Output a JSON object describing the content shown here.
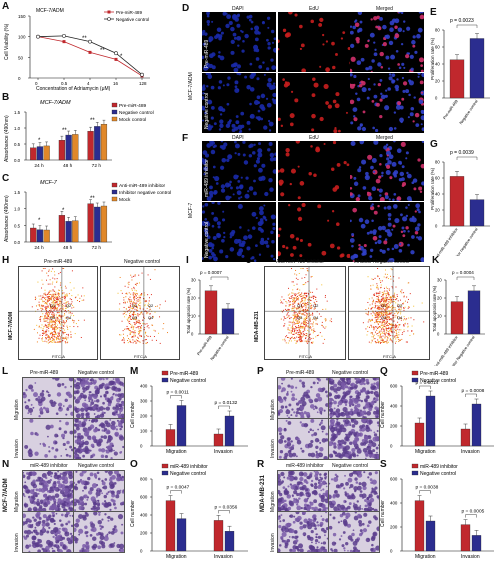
{
  "colors": {
    "red": "#c0282d",
    "blue": "#2b2d8f",
    "orange": "#e0882a",
    "navy": "#1a237e",
    "dapi": "#1a2aa8",
    "edu": "#c81e1e"
  },
  "panels": {
    "A": {
      "label": "A",
      "title": "MCF-7/ADM",
      "ylabel": "Cell Viability (%)",
      "xlabel": "Concentration of Adriamycin (μM)",
      "xticks": [
        "0",
        "0.5",
        "4",
        "16",
        "128"
      ],
      "yticks": [
        "0",
        "50",
        "100",
        "150"
      ],
      "legend": [
        "Pre-miR-489",
        "Negative control"
      ],
      "sig": [
        "**",
        "**",
        "*"
      ]
    },
    "B": {
      "label": "B",
      "title": "MCF-7/ADM",
      "ylabel": "Absorbance (490nm)",
      "groups": [
        "24 h",
        "48 h",
        "72 h"
      ],
      "yticks": [
        "0.0",
        "0.5",
        "1.0",
        "1.5"
      ],
      "legend": [
        "Pre-miR-489",
        "Negative control",
        "Mock control"
      ],
      "sig": [
        "*",
        "**",
        "**"
      ]
    },
    "C": {
      "label": "C",
      "title": "MCF-7",
      "ylabel": "Absorbance (490nm)",
      "groups": [
        "24 h",
        "48 h",
        "72 h"
      ],
      "yticks": [
        "0.0",
        "0.5",
        "1.0",
        "1.5"
      ],
      "legend": [
        "Anti-miR-489 inhibitor",
        "Inhibitor negative control",
        "Mock"
      ],
      "sig": [
        "*",
        "*",
        "**"
      ]
    },
    "D": {
      "label": "D",
      "cols": [
        "DAPI",
        "EdU",
        "Merged"
      ],
      "rowgroup": "MCF-7/ADM",
      "rows": [
        "Pre-miR-489",
        "Negative control"
      ]
    },
    "E": {
      "label": "E",
      "ylabel": "Proliferation rate (%)",
      "p": "p = 0.0023",
      "yticks": [
        "0",
        "20",
        "40",
        "60",
        "80"
      ],
      "cats": [
        "Pre-miR-489",
        "Negative control"
      ]
    },
    "F": {
      "label": "F",
      "cols": [
        "DAPI",
        "EdU",
        "Merged"
      ],
      "rowgroup": "MCF-7",
      "rows": [
        "miR-489 inhibitor",
        "Negative control"
      ]
    },
    "G": {
      "label": "G",
      "ylabel": "Proliferation rate (%)",
      "p": "p = 0.0039",
      "yticks": [
        "0",
        "20",
        "40",
        "60",
        "80"
      ],
      "cats": [
        "Anti-miR-489 inhibitor",
        "Inhibitor negative control"
      ]
    },
    "H": {
      "label": "H",
      "cols": [
        "Pre-miR-489",
        "Negative control"
      ],
      "side": "MCF-7/ADM",
      "xaxis": "FITC-A",
      "quads": [
        "Q1",
        "Q2",
        "Q3",
        "Q4"
      ]
    },
    "I": {
      "label": "I",
      "ylabel": "Total apoptosis rate (%)",
      "p": "p = 0.0007",
      "yticks": [
        "0",
        "10",
        "20",
        "30"
      ],
      "cats": [
        "Pre-miR-489",
        "Negative control"
      ]
    },
    "J": {
      "label": "J",
      "cols": [
        "Anti-miR-489 inhibitor",
        "Inhibitor Negative control"
      ],
      "side": "MDA-MB-231",
      "xaxis": "FITC-A",
      "quads": [
        "Q1",
        "Q2",
        "Q3",
        "Q4"
      ]
    },
    "K": {
      "label": "K",
      "ylabel": "Total apoptosis rate (%)",
      "p": "p = 0.0004",
      "yticks": [
        "0",
        "10",
        "20",
        "30"
      ],
      "cats": [
        "Anti-miR-489 inhibitor",
        "Inhibitor Negative control"
      ]
    },
    "L": {
      "label": "L",
      "cols": [
        "Pre-miR-489",
        "Negative control"
      ],
      "rows": [
        "Migration",
        "Invasion"
      ]
    },
    "M": {
      "label": "M",
      "ylabel": "Cell number",
      "legend": [
        "Pre-miR-489",
        "Negative control"
      ],
      "p1": "p = 0.0011",
      "p2": "p = 0.0132",
      "groups": [
        "Migration",
        "Invasion"
      ],
      "yticks": [
        "0",
        "100",
        "200",
        "300",
        "400"
      ]
    },
    "N": {
      "label": "N",
      "cols": [
        "miR-489 inhibitor",
        "Negative control"
      ],
      "rows": [
        "Migration",
        "Invasion"
      ],
      "side": "MCF-7/ADM"
    },
    "O": {
      "label": "O",
      "ylabel": "Cell number",
      "legend": [
        "miR-489 inhibitor",
        "Negative control"
      ],
      "p1": "p = 0.0047",
      "p2": "p = 0.0356",
      "groups": [
        "Migration",
        "Invasion"
      ],
      "yticks": [
        "0",
        "200",
        "400",
        "600",
        "800"
      ]
    },
    "P": {
      "label": "P",
      "cols": [
        "Pre-miR-489",
        "Negative control"
      ],
      "rows": [
        "Migration",
        "Invasion"
      ],
      "side": "MDA-MB-231"
    },
    "Q": {
      "label": "Q",
      "ylabel": "Cell number",
      "legend": [
        "Pre-miR-489",
        "Negative control"
      ],
      "p1": "p = 0.0014",
      "p2": "p = 0.0008",
      "groups": [
        "Migration",
        "Invasion"
      ],
      "yticks": [
        "0",
        "200",
        "400",
        "600"
      ]
    },
    "R": {
      "label": "R",
      "cols": [
        "miR-489 inhibitor",
        "Negative control"
      ],
      "rows": [
        "Migration",
        "Invasion"
      ]
    },
    "S": {
      "label": "S",
      "ylabel": "Cell number",
      "legend": [
        "miR-489 inhibitor",
        "Negative control"
      ],
      "p1": "p = 0.0038",
      "p2": "p = 0.0005",
      "groups": [
        "Migration",
        "Invasion"
      ],
      "yticks": [
        "0",
        "200",
        "400",
        "600"
      ]
    }
  },
  "chart_data": [
    {
      "id": "A",
      "type": "line",
      "x": [
        "0",
        "0.5",
        "4",
        "16",
        "128"
      ],
      "ylim": [
        0,
        150
      ],
      "series": [
        {
          "name": "Pre-miR-489",
          "values": [
            100,
            88,
            62,
            45,
            5
          ]
        },
        {
          "name": "Negative control",
          "values": [
            100,
            102,
            88,
            60,
            8
          ]
        }
      ]
    },
    {
      "id": "B",
      "type": "bar",
      "categories": [
        "24 h",
        "48 h",
        "72 h"
      ],
      "ylim": [
        0,
        1.5
      ],
      "series": [
        {
          "name": "Pre-miR-489",
          "values": [
            0.38,
            0.62,
            0.9
          ]
        },
        {
          "name": "Negative control",
          "values": [
            0.42,
            0.78,
            1.05
          ]
        },
        {
          "name": "Mock control",
          "values": [
            0.44,
            0.8,
            1.12
          ]
        }
      ]
    },
    {
      "id": "C",
      "type": "bar",
      "categories": [
        "24 h",
        "48 h",
        "72 h"
      ],
      "ylim": [
        0,
        1.5
      ],
      "series": [
        {
          "name": "Anti-miR-489 inhibitor",
          "values": [
            0.42,
            0.8,
            1.15
          ]
        },
        {
          "name": "Inhibitor negative control",
          "values": [
            0.37,
            0.62,
            1.05
          ]
        },
        {
          "name": "Mock",
          "values": [
            0.36,
            0.64,
            1.08
          ]
        }
      ]
    },
    {
      "id": "E",
      "type": "bar",
      "categories": [
        "Pre-miR-489",
        "Negative control"
      ],
      "ylim": [
        0,
        80
      ],
      "values": [
        45,
        70
      ]
    },
    {
      "id": "G",
      "type": "bar",
      "categories": [
        "Anti-miR-489 inhibitor",
        "Inhibitor negative control"
      ],
      "ylim": [
        0,
        80
      ],
      "values": [
        62,
        33
      ]
    },
    {
      "id": "I",
      "type": "bar",
      "categories": [
        "Pre-miR-489",
        "Negative control"
      ],
      "ylim": [
        0,
        30
      ],
      "values": [
        24,
        14
      ]
    },
    {
      "id": "K",
      "type": "bar",
      "categories": [
        "Anti-miR-489 inhibitor",
        "Inhibitor Negative control"
      ],
      "ylim": [
        0,
        30
      ],
      "values": [
        18,
        24
      ]
    },
    {
      "id": "M",
      "type": "bar",
      "categories": [
        "Migration",
        "Invasion"
      ],
      "ylim": [
        0,
        400
      ],
      "series": [
        {
          "name": "Pre-miR-489",
          "values": [
            110,
            80
          ]
        },
        {
          "name": "Negative control",
          "values": [
            270,
            200
          ]
        }
      ]
    },
    {
      "id": "O",
      "type": "bar",
      "categories": [
        "Migration",
        "Invasion"
      ],
      "ylim": [
        0,
        800
      ],
      "series": [
        {
          "name": "miR-489 inhibitor",
          "values": [
            560,
            340
          ]
        },
        {
          "name": "Negative control",
          "values": [
            360,
            220
          ]
        }
      ]
    },
    {
      "id": "Q",
      "type": "bar",
      "categories": [
        "Migration",
        "Invasion"
      ],
      "ylim": [
        0,
        600
      ],
      "series": [
        {
          "name": "Pre-miR-489",
          "values": [
            230,
            170
          ]
        },
        {
          "name": "Negative control",
          "values": [
            500,
            420
          ]
        }
      ]
    },
    {
      "id": "S",
      "type": "bar",
      "categories": [
        "Migration",
        "Invasion"
      ],
      "ylim": [
        0,
        600
      ],
      "series": [
        {
          "name": "miR-489 inhibitor",
          "values": [
            420,
            220
          ]
        },
        {
          "name": "Negative control",
          "values": [
            250,
            130
          ]
        }
      ]
    }
  ]
}
